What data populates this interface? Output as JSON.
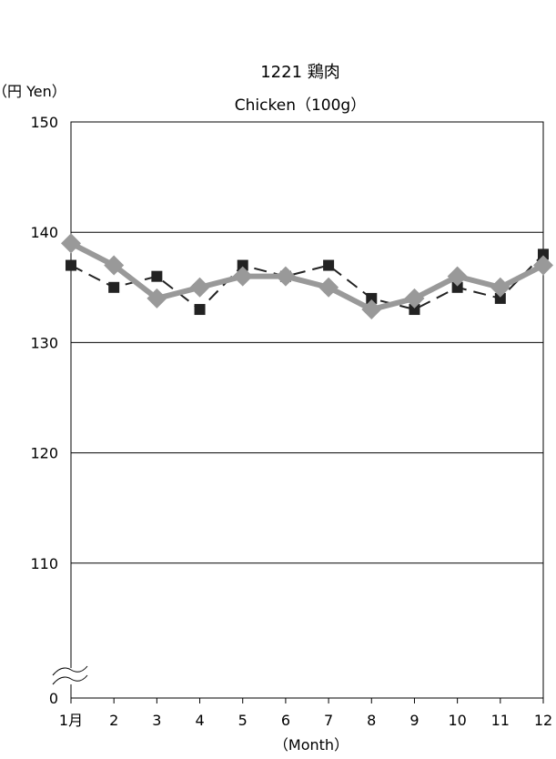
{
  "chart_data": {
    "type": "line",
    "title": "1221 鶏肉",
    "subtitle": "Chicken（100g）",
    "ylabel": "（円 Yen）",
    "xlabel": "（Month）",
    "ylim": [
      100,
      150
    ],
    "y_ticks": [
      150,
      140,
      130,
      120,
      110
    ],
    "y_zero_label": "0",
    "axis_break": true,
    "categories": [
      "1月",
      "2",
      "3",
      "4",
      "5",
      "6",
      "7",
      "8",
      "9",
      "10",
      "11",
      "12"
    ],
    "series": [
      {
        "values": [
          137,
          135,
          136,
          133,
          137,
          136,
          137,
          134,
          133,
          135,
          134,
          138
        ],
        "color": "#222222",
        "marker": "square",
        "style": "dashed"
      },
      {
        "values": [
          139,
          137,
          134,
          135,
          136,
          136,
          135,
          133,
          134,
          136,
          135,
          137
        ],
        "color": "#999999",
        "marker": "diamond",
        "style": "solid"
      }
    ],
    "grid": true
  }
}
